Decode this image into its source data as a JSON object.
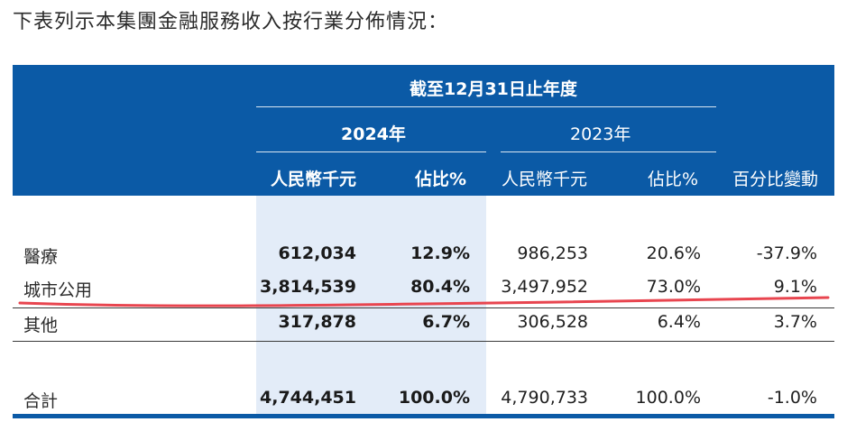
{
  "caption": "下表列示本集團金融服務收入按行業分佈情況：",
  "table": {
    "period_header": "截至12月31日止年度",
    "year_current": "2024年",
    "year_prior": "2023年",
    "col_rmb_current": "人民幣千元",
    "col_pct_current": "佔比%",
    "col_rmb_prior": "人民幣千元",
    "col_pct_prior": "佔比%",
    "col_change": "百分比變動",
    "rows": [
      {
        "label": "醫療",
        "rmb_2024": "612,034",
        "pct_2024": "12.9%",
        "rmb_2023": "986,253",
        "pct_2023": "20.6%",
        "change": "-37.9%"
      },
      {
        "label": "城市公用",
        "rmb_2024": "3,814,539",
        "pct_2024": "80.4%",
        "rmb_2023": "3,497,952",
        "pct_2023": "73.0%",
        "change": "9.1%"
      },
      {
        "label": "其他",
        "rmb_2024": "317,878",
        "pct_2024": "6.7%",
        "rmb_2023": "306,528",
        "pct_2023": "6.4%",
        "change": "3.7%"
      }
    ],
    "total": {
      "label": "合計",
      "rmb_2024": "4,744,451",
      "pct_2024": "100.0%",
      "rmb_2023": "4,790,733",
      "pct_2023": "100.0%",
      "change": "-1.0%"
    }
  },
  "colors": {
    "header_blue": "#0b5aa6",
    "shade": "#e3ecf8",
    "highlight_red": "#e8454f"
  }
}
